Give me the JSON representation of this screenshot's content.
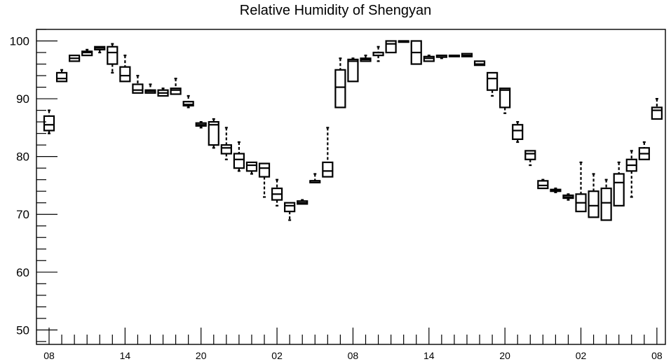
{
  "chart_data": {
    "type": "boxplot",
    "title": "Relative Humidity of Shengyan",
    "xlabel": "",
    "ylabel": "",
    "ylim": [
      47.5,
      102
    ],
    "y_ticks": [
      50,
      60,
      70,
      80,
      90,
      100
    ],
    "x_ticks": [
      "08",
      "14",
      "20",
      "02",
      "08",
      "14",
      "20",
      "02",
      "08"
    ],
    "grid": false,
    "boxes": [
      {
        "x": 0,
        "whislo": 84.0,
        "q1": 84.5,
        "med": 85.5,
        "q3": 87.0,
        "whishi": 88.0
      },
      {
        "x": 1,
        "whislo": 93.0,
        "q1": 93.0,
        "med": 93.5,
        "q3": 94.5,
        "whishi": 95.0
      },
      {
        "x": 2,
        "whislo": 96.5,
        "q1": 96.5,
        "med": 97.0,
        "q3": 97.5,
        "whishi": 97.5
      },
      {
        "x": 3,
        "whislo": 97.5,
        "q1": 97.5,
        "med": 98.0,
        "q3": 98.2,
        "whishi": 98.5
      },
      {
        "x": 4,
        "whislo": 98.0,
        "q1": 98.5,
        "med": 98.8,
        "q3": 99.0,
        "whishi": 99.0
      },
      {
        "x": 5,
        "whislo": 94.5,
        "q1": 96.0,
        "med": 98.0,
        "q3": 99.0,
        "whishi": 99.5
      },
      {
        "x": 6,
        "whislo": 93.0,
        "q1": 93.0,
        "med": 94.0,
        "q3": 95.5,
        "whishi": 97.5
      },
      {
        "x": 7,
        "whislo": 91.0,
        "q1": 91.0,
        "med": 91.5,
        "q3": 92.5,
        "whishi": 94.0
      },
      {
        "x": 8,
        "whislo": 91.0,
        "q1": 91.0,
        "med": 91.3,
        "q3": 91.5,
        "whishi": 92.5
      },
      {
        "x": 9,
        "whislo": 90.5,
        "q1": 90.5,
        "med": 91.0,
        "q3": 91.5,
        "whishi": 91.8
      },
      {
        "x": 10,
        "whislo": 90.8,
        "q1": 90.8,
        "med": 91.5,
        "q3": 91.8,
        "whishi": 93.5
      },
      {
        "x": 11,
        "whislo": 88.5,
        "q1": 88.8,
        "med": 89.0,
        "q3": 89.5,
        "whishi": 90.5
      },
      {
        "x": 12,
        "whislo": 85.0,
        "q1": 85.3,
        "med": 85.5,
        "q3": 85.8,
        "whishi": 86.0
      },
      {
        "x": 13,
        "whislo": 81.5,
        "q1": 82.0,
        "med": 85.5,
        "q3": 86.0,
        "whishi": 86.5
      },
      {
        "x": 14,
        "whislo": 79.5,
        "q1": 80.5,
        "med": 81.5,
        "q3": 82.0,
        "whishi": 85.0
      },
      {
        "x": 15,
        "whislo": 77.5,
        "q1": 78.0,
        "med": 79.5,
        "q3": 80.5,
        "whishi": 82.5
      },
      {
        "x": 16,
        "whislo": 77.0,
        "q1": 77.5,
        "med": 78.5,
        "q3": 79.0,
        "whishi": 79.0
      },
      {
        "x": 17,
        "whislo": 73.0,
        "q1": 76.5,
        "med": 78.0,
        "q3": 78.8,
        "whishi": 78.8
      },
      {
        "x": 18,
        "whislo": 71.5,
        "q1": 72.5,
        "med": 73.5,
        "q3": 74.5,
        "whishi": 76.0
      },
      {
        "x": 19,
        "whislo": 69.0,
        "q1": 70.5,
        "med": 71.5,
        "q3": 72.0,
        "whishi": 72.0
      },
      {
        "x": 20,
        "whislo": 71.8,
        "q1": 71.8,
        "med": 72.0,
        "q3": 72.3,
        "whishi": 72.5
      },
      {
        "x": 21,
        "whislo": 75.5,
        "q1": 75.5,
        "med": 75.8,
        "q3": 75.8,
        "whishi": 77.0
      },
      {
        "x": 22,
        "whislo": 76.5,
        "q1": 76.5,
        "med": 77.5,
        "q3": 79.0,
        "whishi": 85.0
      },
      {
        "x": 23,
        "whislo": 88.5,
        "q1": 88.5,
        "med": 92.0,
        "q3": 95.0,
        "whishi": 97.0
      },
      {
        "x": 24,
        "whislo": 93.0,
        "q1": 93.0,
        "med": 96.5,
        "q3": 96.8,
        "whishi": 97.0
      },
      {
        "x": 25,
        "whislo": 96.5,
        "q1": 96.5,
        "med": 96.8,
        "q3": 97.0,
        "whishi": 97.5
      },
      {
        "x": 26,
        "whislo": 96.5,
        "q1": 97.5,
        "med": 98.0,
        "q3": 98.0,
        "whishi": 99.0
      },
      {
        "x": 27,
        "whislo": 98.0,
        "q1": 98.0,
        "med": 99.5,
        "q3": 100.0,
        "whishi": 100.0
      },
      {
        "x": 28,
        "whislo": 99.8,
        "q1": 99.8,
        "med": 100.0,
        "q3": 100.0,
        "whishi": 100.0
      },
      {
        "x": 29,
        "whislo": 96.0,
        "q1": 96.0,
        "med": 98.0,
        "q3": 100.0,
        "whishi": 100.0
      },
      {
        "x": 30,
        "whislo": 96.5,
        "q1": 96.5,
        "med": 97.0,
        "q3": 97.3,
        "whishi": 97.5
      },
      {
        "x": 31,
        "whislo": 97.0,
        "q1": 97.2,
        "med": 97.5,
        "q3": 97.5,
        "whishi": 97.5
      },
      {
        "x": 32,
        "whislo": 97.2,
        "q1": 97.3,
        "med": 97.5,
        "q3": 97.5,
        "whishi": 97.5
      },
      {
        "x": 33,
        "whislo": 97.3,
        "q1": 97.3,
        "med": 97.5,
        "q3": 97.8,
        "whishi": 97.8
      },
      {
        "x": 34,
        "whislo": 95.8,
        "q1": 95.8,
        "med": 96.0,
        "q3": 96.5,
        "whishi": 96.5
      },
      {
        "x": 35,
        "whislo": 90.5,
        "q1": 91.5,
        "med": 93.5,
        "q3": 94.5,
        "whishi": 94.5
      },
      {
        "x": 36,
        "whislo": 87.5,
        "q1": 88.5,
        "med": 91.5,
        "q3": 91.8,
        "whishi": 91.8
      },
      {
        "x": 37,
        "whislo": 82.5,
        "q1": 83.0,
        "med": 84.5,
        "q3": 85.5,
        "whishi": 86.0
      },
      {
        "x": 38,
        "whislo": 78.5,
        "q1": 79.5,
        "med": 80.5,
        "q3": 81.0,
        "whishi": 81.0
      },
      {
        "x": 39,
        "whislo": 74.5,
        "q1": 74.5,
        "med": 75.0,
        "q3": 75.8,
        "whishi": 76.0
      },
      {
        "x": 40,
        "whislo": 73.8,
        "q1": 74.0,
        "med": 74.2,
        "q3": 74.3,
        "whishi": 74.5
      },
      {
        "x": 41,
        "whislo": 72.5,
        "q1": 72.8,
        "med": 73.0,
        "q3": 73.3,
        "whishi": 73.5
      },
      {
        "x": 42,
        "whislo": 70.5,
        "q1": 70.5,
        "med": 72.0,
        "q3": 73.5,
        "whishi": 79.0
      },
      {
        "x": 43,
        "whislo": 69.5,
        "q1": 69.5,
        "med": 71.5,
        "q3": 74.0,
        "whishi": 77.0
      },
      {
        "x": 44,
        "whislo": 69.0,
        "q1": 69.0,
        "med": 72.0,
        "q3": 74.5,
        "whishi": 76.0
      },
      {
        "x": 45,
        "whislo": 71.5,
        "q1": 71.5,
        "med": 75.5,
        "q3": 77.0,
        "whishi": 79.0
      },
      {
        "x": 46,
        "whislo": 73.0,
        "q1": 77.5,
        "med": 78.5,
        "q3": 79.5,
        "whishi": 81.0
      },
      {
        "x": 47,
        "whislo": 79.5,
        "q1": 79.5,
        "med": 80.5,
        "q3": 81.5,
        "whishi": 82.5
      },
      {
        "x": 48,
        "whislo": 86.5,
        "q1": 86.5,
        "med": 88.0,
        "q3": 88.5,
        "whishi": 90.0
      }
    ]
  }
}
